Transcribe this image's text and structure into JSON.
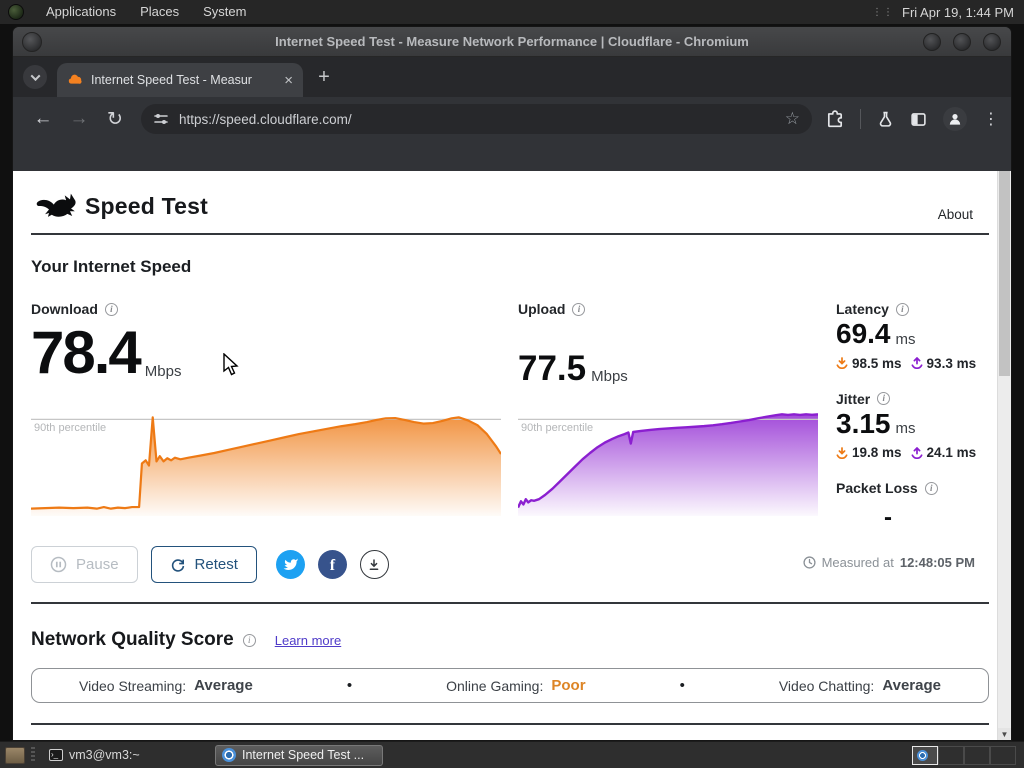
{
  "system_bar": {
    "menus": [
      "Applications",
      "Places",
      "System"
    ],
    "clock": "Fri Apr 19, 1:44 PM"
  },
  "window_title": "Internet Speed Test - Measure Network Performance | Cloudflare - Chromium",
  "browser": {
    "tab_title": "Internet Speed Test - Measur",
    "url": "https://speed.cloudflare.com/"
  },
  "page": {
    "brand": "Speed Test",
    "about_link": "About",
    "section_title": "Your Internet Speed",
    "metrics": {
      "download": {
        "label": "Download",
        "value": "78.4",
        "unit": "Mbps"
      },
      "upload": {
        "label": "Upload",
        "value": "77.5",
        "unit": "Mbps"
      },
      "latency": {
        "label": "Latency",
        "value": "69.4",
        "unit": "ms",
        "loaded_down": "98.5 ms",
        "loaded_up": "93.3 ms"
      },
      "jitter": {
        "label": "Jitter",
        "value": "3.15",
        "unit": "ms",
        "loaded_down": "19.8 ms",
        "loaded_up": "24.1 ms"
      },
      "packet_loss": {
        "label": "Packet Loss",
        "value": "-"
      }
    },
    "controls": {
      "pause": "Pause",
      "retest": "Retest"
    },
    "measured": {
      "label": "Measured at",
      "time": "12:48:05 PM"
    },
    "quality": {
      "title": "Network Quality Score",
      "learn_more": "Learn more",
      "separator": "•",
      "items": [
        {
          "label": "Video Streaming:",
          "value": "Average",
          "status": "average"
        },
        {
          "label": "Online Gaming:",
          "value": "Poor",
          "status": "poor"
        },
        {
          "label": "Video Chatting:",
          "value": "Average",
          "status": "average"
        }
      ]
    }
  },
  "taskbar": {
    "windows": [
      {
        "title": "vm3@vm3:~",
        "active": false
      },
      {
        "title": "Internet Speed Test ...",
        "active": true
      }
    ]
  },
  "colors": {
    "download_accent": "#ee7a15",
    "upload_accent": "#8b1fd0",
    "poor": "#dd8526",
    "average": "#3f444a",
    "retest_blue": "#23527c",
    "twitter": "#1da1f2",
    "facebook": "#37538c"
  },
  "chart_data": [
    {
      "type": "area",
      "name": "download-throughput-over-time",
      "title": "Download speed during test (Mbps, relative)",
      "color": "#ee7a15",
      "percentile_label": "90th percentile",
      "percentile_line": 92,
      "ylim": [
        0,
        100
      ],
      "points": [
        [
          0,
          7
        ],
        [
          3,
          7.5
        ],
        [
          6,
          8
        ],
        [
          9,
          7.5
        ],
        [
          12,
          8
        ],
        [
          14,
          7
        ],
        [
          15.5,
          8.5
        ],
        [
          17,
          7
        ],
        [
          18.5,
          8
        ],
        [
          20,
          7.5
        ],
        [
          21.5,
          8.5
        ],
        [
          23,
          8.5
        ],
        [
          23.6,
          50
        ],
        [
          24.4,
          53
        ],
        [
          25.1,
          48
        ],
        [
          25.9,
          94
        ],
        [
          26.7,
          52
        ],
        [
          27.4,
          57
        ],
        [
          28.2,
          52
        ],
        [
          29,
          55
        ],
        [
          29.8,
          53
        ],
        [
          30.6,
          55.5
        ],
        [
          31.8,
          54
        ],
        [
          33.5,
          55.5
        ],
        [
          36,
          57.5
        ],
        [
          39,
          60
        ],
        [
          42,
          63
        ],
        [
          45,
          66
        ],
        [
          48,
          69
        ],
        [
          51,
          72
        ],
        [
          54,
          75
        ],
        [
          57,
          78
        ],
        [
          60,
          80.5
        ],
        [
          63,
          83
        ],
        [
          66,
          85.5
        ],
        [
          69,
          87.5
        ],
        [
          71.5,
          89.5
        ],
        [
          73.5,
          91.5
        ],
        [
          75.5,
          93
        ],
        [
          77.5,
          93.2
        ],
        [
          79.5,
          91.5
        ],
        [
          81.5,
          89.5
        ],
        [
          83.5,
          88
        ],
        [
          85.5,
          88.5
        ],
        [
          87.5,
          90.5
        ],
        [
          89.5,
          93
        ],
        [
          91,
          94
        ],
        [
          93,
          91
        ],
        [
          95,
          86.5
        ],
        [
          97,
          78
        ],
        [
          99,
          66
        ],
        [
          100,
          59
        ]
      ]
    },
    {
      "type": "area",
      "name": "upload-throughput-over-time",
      "title": "Upload speed during test (Mbps, relative)",
      "color": "#8b1fd0",
      "percentile_label": "90th percentile",
      "percentile_line": 92,
      "ylim": [
        0,
        100
      ],
      "points": [
        [
          0,
          8
        ],
        [
          1,
          14
        ],
        [
          1.8,
          11
        ],
        [
          2.6,
          16
        ],
        [
          3.4,
          13
        ],
        [
          4.4,
          15
        ],
        [
          5.4,
          14.5
        ],
        [
          7,
          16
        ],
        [
          9,
          20
        ],
        [
          11.5,
          26
        ],
        [
          14,
          33
        ],
        [
          16.5,
          40
        ],
        [
          19,
          47
        ],
        [
          21.5,
          54
        ],
        [
          24,
          60
        ],
        [
          26.5,
          65.5
        ],
        [
          29,
          70
        ],
        [
          31.5,
          73.5
        ],
        [
          33.5,
          76
        ],
        [
          35.5,
          78
        ],
        [
          36.8,
          79.5
        ],
        [
          37.6,
          69
        ],
        [
          38.4,
          80
        ],
        [
          41,
          81
        ],
        [
          44,
          82
        ],
        [
          47,
          82.8
        ],
        [
          50,
          83.4
        ],
        [
          53,
          84
        ],
        [
          56,
          84.5
        ],
        [
          59,
          85
        ],
        [
          62,
          85.6
        ],
        [
          65,
          86.4
        ],
        [
          68,
          87.4
        ],
        [
          71,
          88.6
        ],
        [
          74,
          90
        ],
        [
          77,
          91.4
        ],
        [
          80,
          93
        ],
        [
          83,
          94.6
        ],
        [
          86,
          96
        ],
        [
          88,
          96.8
        ],
        [
          90,
          96.2
        ],
        [
          92,
          96.8
        ],
        [
          94,
          96.3
        ],
        [
          96,
          96.8
        ],
        [
          98,
          96.4
        ],
        [
          100,
          96.8
        ]
      ]
    }
  ]
}
